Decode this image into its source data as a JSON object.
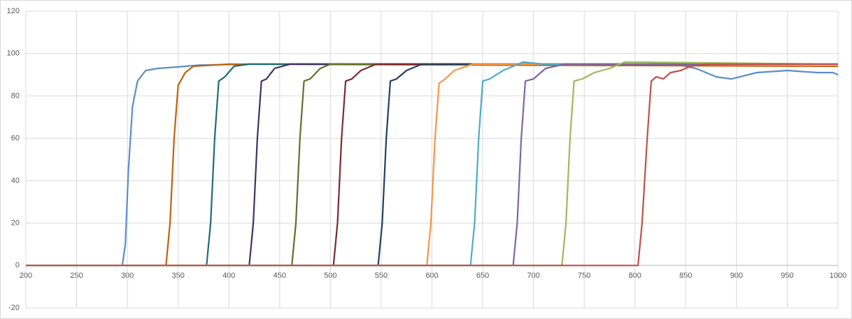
{
  "chart_data": {
    "type": "line",
    "xlim": [
      200,
      1000
    ],
    "xticks": [
      200,
      250,
      300,
      350,
      400,
      450,
      500,
      550,
      600,
      650,
      700,
      750,
      800,
      850,
      900,
      950,
      1000
    ],
    "ylim": [
      -20,
      120
    ],
    "yticks": [
      -20,
      0,
      20,
      40,
      60,
      80,
      100,
      120
    ],
    "grid": true,
    "series": [
      {
        "color": "#5b8ec4",
        "x": [
          200,
          295,
          298,
          301,
          305,
          310,
          318,
          330,
          345,
          370,
          420,
          600,
          840,
          860,
          880,
          895,
          920,
          950,
          980,
          995,
          1000
        ],
        "values": [
          0,
          0,
          10,
          45,
          75,
          87,
          92,
          93,
          93.5,
          94.5,
          95,
          95,
          95,
          93,
          89,
          88,
          91,
          92,
          91,
          91,
          90
        ]
      },
      {
        "color": "#c0620e",
        "x": [
          200,
          338,
          342,
          346,
          350,
          357,
          365,
          400,
          1000
        ],
        "values": [
          0,
          0,
          20,
          60,
          85,
          91,
          94,
          95,
          94
        ]
      },
      {
        "color": "#1f6b7a",
        "x": [
          200,
          378,
          382,
          386,
          390,
          396,
          405,
          420,
          1000
        ],
        "values": [
          0,
          0,
          20,
          60,
          87,
          89,
          94,
          95,
          95
        ]
      },
      {
        "color": "#3f3163",
        "x": [
          200,
          420,
          424,
          428,
          432,
          437,
          445,
          460,
          1000
        ],
        "values": [
          0,
          0,
          20,
          60,
          87,
          88,
          93,
          95,
          95
        ]
      },
      {
        "color": "#5a7330",
        "x": [
          200,
          462,
          466,
          470,
          474,
          480,
          490,
          500,
          1000
        ],
        "values": [
          0,
          0,
          20,
          60,
          87,
          88,
          93,
          95,
          95
        ]
      },
      {
        "color": "#7a2a2f",
        "x": [
          200,
          503,
          507,
          511,
          515,
          521,
          530,
          545,
          1000
        ],
        "values": [
          0,
          0,
          20,
          60,
          87,
          88,
          92,
          95,
          95
        ]
      },
      {
        "color": "#243f60",
        "x": [
          200,
          547,
          551,
          555,
          559,
          565,
          575,
          590,
          1000
        ],
        "values": [
          0,
          0,
          20,
          60,
          87,
          88,
          92,
          95,
          95
        ]
      },
      {
        "color": "#f79646",
        "x": [
          200,
          595,
          599,
          603,
          607,
          613,
          622,
          640,
          1000
        ],
        "values": [
          0,
          0,
          20,
          60,
          86,
          88,
          92,
          95,
          95
        ]
      },
      {
        "color": "#4bacc6",
        "x": [
          200,
          638,
          642,
          646,
          650,
          657,
          670,
          690,
          710,
          1000
        ],
        "values": [
          0,
          0,
          20,
          60,
          87,
          88,
          92,
          96,
          95,
          95
        ]
      },
      {
        "color": "#8064a2",
        "x": [
          200,
          680,
          684,
          688,
          692,
          700,
          712,
          730,
          1000
        ],
        "values": [
          0,
          0,
          20,
          60,
          87,
          88,
          93,
          95,
          95
        ]
      },
      {
        "color": "#9bbb59",
        "x": [
          200,
          728,
          732,
          736,
          740,
          748,
          760,
          775,
          790,
          1000
        ],
        "values": [
          0,
          0,
          20,
          60,
          87,
          88,
          91,
          93,
          96,
          95
        ]
      },
      {
        "color": "#c0504d",
        "x": [
          200,
          803,
          807,
          812,
          816,
          821,
          828,
          835,
          845,
          855,
          870,
          1000
        ],
        "values": [
          0,
          0,
          20,
          60,
          87,
          89,
          88,
          91,
          92,
          94,
          95,
          95
        ]
      }
    ]
  }
}
